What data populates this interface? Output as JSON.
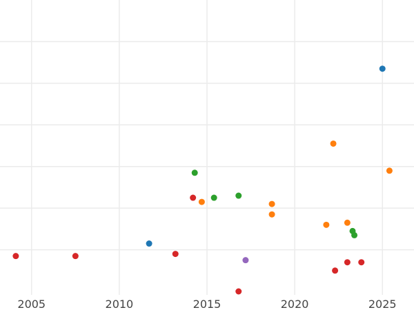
{
  "chart_data": {
    "type": "scatter",
    "title": "",
    "xlabel": "",
    "ylabel": "",
    "xlim": [
      2003.2,
      2026.8
    ],
    "ylim": [
      0,
      14
    ],
    "x_ticks": [
      2005,
      2010,
      2015,
      2020,
      2025
    ],
    "x_tick_labels": [
      "2005",
      "2010",
      "2015",
      "2020",
      "2025"
    ],
    "y_gridlines": [
      2,
      4,
      6,
      8,
      10,
      12
    ],
    "grid": true,
    "legend": "none",
    "series": [
      {
        "color": "#1f77b4",
        "points": [
          [
            2011.7,
            2.3
          ],
          [
            2025.0,
            10.7
          ]
        ]
      },
      {
        "color": "#ff7f0e",
        "points": [
          [
            2014.7,
            4.3
          ],
          [
            2018.7,
            4.2
          ],
          [
            2018.7,
            3.7
          ],
          [
            2021.8,
            3.2
          ],
          [
            2022.2,
            7.1
          ],
          [
            2023.0,
            3.3
          ],
          [
            2025.4,
            5.8
          ]
        ]
      },
      {
        "color": "#2ca02c",
        "points": [
          [
            2014.3,
            5.7
          ],
          [
            2015.4,
            4.5
          ],
          [
            2016.8,
            4.6
          ],
          [
            2023.3,
            2.9
          ],
          [
            2023.4,
            2.7
          ]
        ]
      },
      {
        "color": "#d62728",
        "points": [
          [
            2004.1,
            1.7
          ],
          [
            2007.5,
            1.7
          ],
          [
            2013.2,
            1.8
          ],
          [
            2014.2,
            4.5
          ],
          [
            2016.8,
            0.0
          ],
          [
            2022.3,
            1.0
          ],
          [
            2023.0,
            1.4
          ],
          [
            2023.8,
            1.4
          ]
        ]
      },
      {
        "color": "#9467bd",
        "points": [
          [
            2017.2,
            1.5
          ]
        ]
      }
    ]
  }
}
